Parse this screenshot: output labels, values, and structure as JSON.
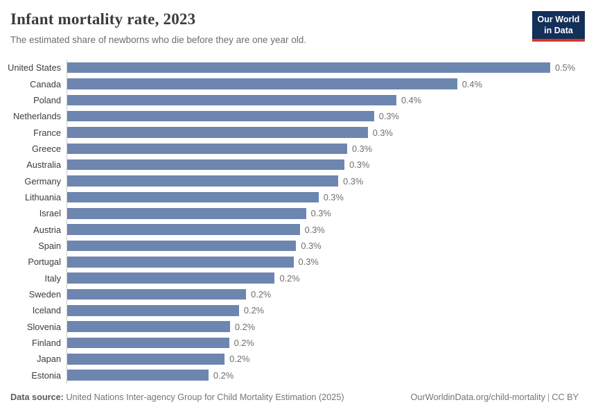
{
  "header": {
    "title": "Infant mortality rate, 2023",
    "subtitle": "The estimated share of newborns who die before they are one year old."
  },
  "logo": {
    "line1": "Our World",
    "line2": "in Data",
    "bg_color": "#12305a",
    "accent_color": "#d0382e"
  },
  "chart_data": {
    "type": "bar",
    "orientation": "horizontal",
    "title": "Infant mortality rate, 2023",
    "subtitle": "The estimated share of newborns who die before they are one year old.",
    "unit": "%",
    "xlim": [
      0,
      0.54
    ],
    "grid": false,
    "legend": "none",
    "bar_color": "#6d86af",
    "axis_line_color": "#cccccc",
    "categories": [
      "United States",
      "Canada",
      "Poland",
      "Netherlands",
      "France",
      "Greece",
      "Australia",
      "Germany",
      "Lithuania",
      "Israel",
      "Austria",
      "Spain",
      "Portugal",
      "Italy",
      "Sweden",
      "Iceland",
      "Slovenia",
      "Finland",
      "Japan",
      "Estonia"
    ],
    "values": [
      0.54,
      0.436,
      0.368,
      0.343,
      0.336,
      0.313,
      0.31,
      0.303,
      0.281,
      0.267,
      0.26,
      0.256,
      0.253,
      0.232,
      0.2,
      0.192,
      0.182,
      0.181,
      0.176,
      0.158
    ],
    "value_labels": [
      "0.5%",
      "0.4%",
      "0.4%",
      "0.3%",
      "0.3%",
      "0.3%",
      "0.3%",
      "0.3%",
      "0.3%",
      "0.3%",
      "0.3%",
      "0.3%",
      "0.3%",
      "0.2%",
      "0.2%",
      "0.2%",
      "0.2%",
      "0.2%",
      "0.2%",
      "0.2%"
    ]
  },
  "footer": {
    "source_label": "Data source:",
    "source_text": "United Nations Inter-agency Group for Child Mortality Estimation (2025)",
    "link": "OurWorldinData.org/child-mortality",
    "separator": "|",
    "license": "CC BY"
  }
}
